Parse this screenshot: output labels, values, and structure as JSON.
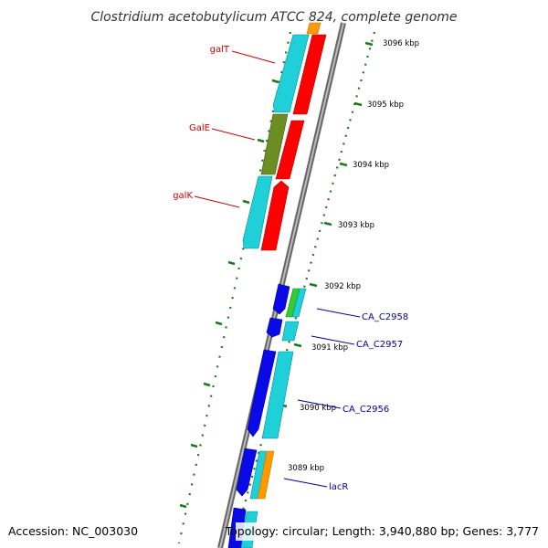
{
  "title": "Clostridium acetobutylicum ATCC 824, complete genome",
  "footer": {
    "accession": "Accession: NC_003030",
    "summary": "Topology: circular; Length: 3,940,880 bp; Genes: 3,777"
  },
  "scale_labels": [
    "3096 kbp",
    "3095 kbp",
    "3094 kbp",
    "3093 kbp",
    "3092 kbp",
    "3091 kbp",
    "3090 kbp",
    "3089 kbp"
  ],
  "gene_labels": [
    {
      "text": "galT",
      "color": "#cc0000"
    },
    {
      "text": "GalE",
      "color": "#cc0000"
    },
    {
      "text": "galK",
      "color": "#cc0000"
    },
    {
      "text": "CA_C2958",
      "color": "#0000aa"
    },
    {
      "text": "CA_C2957",
      "color": "#0000aa"
    },
    {
      "text": "CA_C2956",
      "color": "#0000aa"
    },
    {
      "text": "lacR",
      "color": "#0000aa"
    }
  ],
  "colors": {
    "backbone": "#888888",
    "forward_red": "#ff0000",
    "reverse_cyan": "#1fd0d8",
    "olive": "#6b8e23",
    "blue": "#0a0ae8",
    "green": "#33cc33",
    "orange": "#ff9900",
    "scale_ticks": "#1a7a1a"
  }
}
